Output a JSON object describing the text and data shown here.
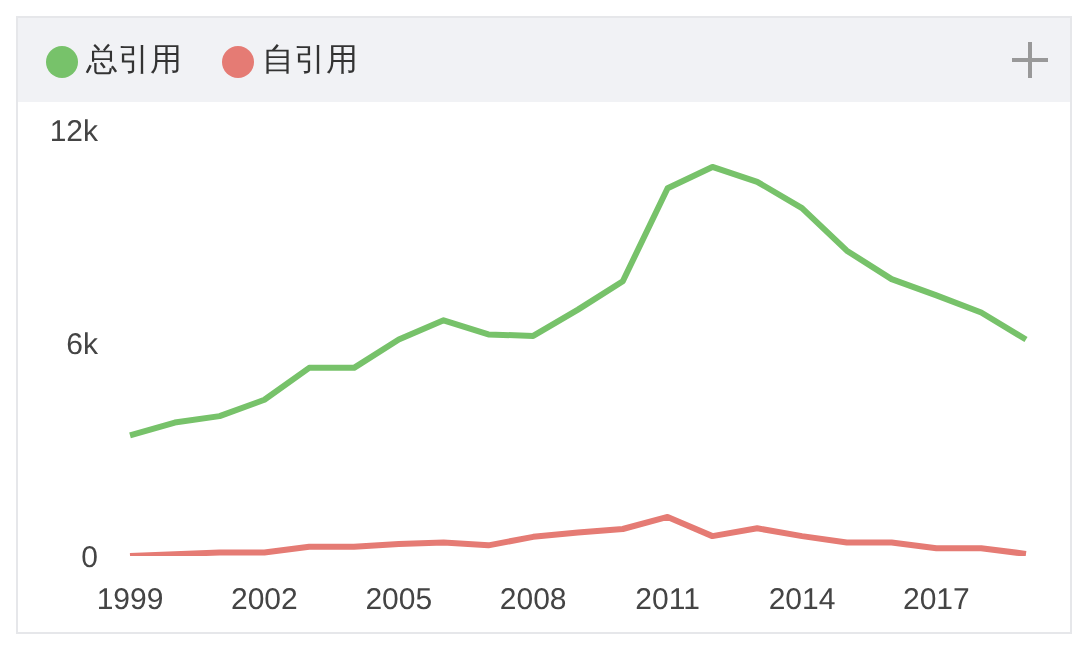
{
  "chart_data": {
    "type": "line",
    "categories": [
      "1999",
      null,
      null,
      "2002",
      null,
      null,
      "2005",
      null,
      null,
      "2008",
      null,
      null,
      "2011",
      null,
      null,
      "2014",
      null,
      null,
      "2017",
      null,
      null
    ],
    "series": [
      {
        "name": "总引用",
        "color": "#77c26a",
        "values": [
          3400,
          3760,
          3940,
          4400,
          5300,
          5300,
          6100,
          6640,
          6240,
          6200,
          6940,
          7740,
          10360,
          10960,
          10540,
          9800,
          8600,
          7800,
          7340,
          6860,
          6100
        ]
      },
      {
        "name": "自引用",
        "color": "#e57b74",
        "values": [
          0,
          50,
          100,
          100,
          260,
          260,
          340,
          380,
          300,
          540,
          660,
          760,
          1100,
          560,
          780,
          560,
          380,
          380,
          220,
          220,
          60
        ]
      }
    ],
    "ylim": [
      0,
      12000
    ],
    "yticks": [
      {
        "value": 0,
        "label": "0"
      },
      {
        "value": 6000,
        "label": "6k"
      },
      {
        "value": 12000,
        "label": "12k"
      }
    ],
    "grid": false,
    "legend": "top left",
    "marker": "none",
    "line_style": "solid"
  }
}
